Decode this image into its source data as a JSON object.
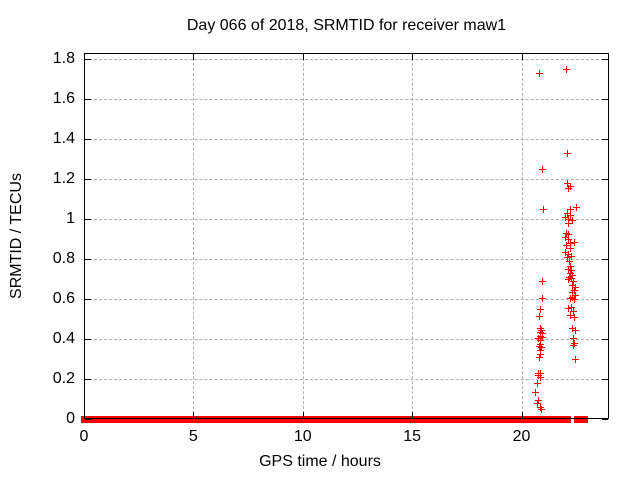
{
  "title": "Day 066 of 2018, SRMTID for receiver maw1",
  "chart_data": {
    "type": "scatter",
    "title": "Day 066 of 2018, SRMTID for receiver maw1",
    "xlabel": "GPS time / hours",
    "ylabel": "SRMTID / TECUs",
    "xlim": [
      0,
      24
    ],
    "ylim": [
      0,
      1.83
    ],
    "xticks": [
      0,
      5,
      10,
      15,
      20
    ],
    "xtick_labels": [
      "0",
      "5",
      "10",
      "15",
      "20"
    ],
    "yticks": [
      0,
      0.2,
      0.4,
      0.6,
      0.8,
      1,
      1.2,
      1.4,
      1.6,
      1.8
    ],
    "ytick_labels": [
      "0",
      "0.2",
      "0.4",
      "0.6",
      "0.8",
      "1",
      "1.2",
      "1.4",
      "1.6",
      "1.8"
    ],
    "grid": true,
    "legend": "none",
    "marker": {
      "shape": "plus",
      "size": 7
    },
    "colors": {
      "marker": "#ff0000",
      "grid": "#b0b0b0",
      "axis": "#000000",
      "background": "#ffffff",
      "text": "#000000"
    },
    "baseline_y": 0,
    "baseline_segments_hours": [
      [
        0,
        20.76
      ],
      [
        20.98,
        22.08
      ],
      [
        22.54,
        22.9
      ]
    ],
    "points": [
      [
        20.82,
        1.73
      ],
      [
        20.94,
        1.25
      ],
      [
        21.0,
        1.05
      ],
      [
        20.97,
        0.69
      ],
      [
        20.97,
        0.601
      ],
      [
        20.88,
        0.546
      ],
      [
        20.8,
        0.514
      ],
      [
        20.85,
        0.455
      ],
      [
        20.9,
        0.445
      ],
      [
        20.85,
        0.434
      ],
      [
        20.95,
        0.429
      ],
      [
        20.85,
        0.413
      ],
      [
        20.95,
        0.409
      ],
      [
        20.78,
        0.404
      ],
      [
        20.85,
        0.393
      ],
      [
        20.85,
        0.373
      ],
      [
        20.8,
        0.363
      ],
      [
        20.9,
        0.359
      ],
      [
        20.85,
        0.343
      ],
      [
        20.85,
        0.323
      ],
      [
        20.88,
        0.321
      ],
      [
        20.8,
        0.309
      ],
      [
        20.78,
        0.229
      ],
      [
        20.89,
        0.229
      ],
      [
        20.85,
        0.209
      ],
      [
        20.77,
        0.218
      ],
      [
        20.73,
        0.176
      ],
      [
        20.66,
        0.134
      ],
      [
        20.77,
        0.093
      ],
      [
        20.73,
        0.076
      ],
      [
        20.85,
        0.059
      ],
      [
        20.93,
        0.046
      ],
      [
        22.04,
        1.75
      ],
      [
        22.1,
        1.33
      ],
      [
        22.11,
        1.18
      ],
      [
        22.22,
        1.163
      ],
      [
        22.17,
        1.151
      ],
      [
        22.52,
        1.059
      ],
      [
        22.26,
        1.046
      ],
      [
        22.11,
        1.026
      ],
      [
        22.25,
        1.018
      ],
      [
        22.03,
        1.006
      ],
      [
        22.17,
        0.996
      ],
      [
        22.34,
        0.993
      ],
      [
        22.17,
        0.979
      ],
      [
        22.06,
        0.926
      ],
      [
        22.17,
        0.923
      ],
      [
        22.03,
        0.909
      ],
      [
        22.17,
        0.896
      ],
      [
        22.44,
        0.884
      ],
      [
        22.26,
        0.876
      ],
      [
        22.06,
        0.868
      ],
      [
        22.22,
        0.851
      ],
      [
        22.03,
        0.834
      ],
      [
        22.14,
        0.823
      ],
      [
        22.3,
        0.813
      ],
      [
        22.09,
        0.806
      ],
      [
        22.2,
        0.79
      ],
      [
        22.26,
        0.765
      ],
      [
        22.17,
        0.75
      ],
      [
        22.3,
        0.745
      ],
      [
        22.22,
        0.73
      ],
      [
        22.34,
        0.72
      ],
      [
        22.2,
        0.71
      ],
      [
        22.14,
        0.7
      ],
      [
        22.3,
        0.701
      ],
      [
        22.37,
        0.688
      ],
      [
        22.34,
        0.668
      ],
      [
        22.45,
        0.659
      ],
      [
        22.4,
        0.643
      ],
      [
        22.33,
        0.634
      ],
      [
        22.49,
        0.618
      ],
      [
        22.34,
        0.609
      ],
      [
        22.25,
        0.601
      ],
      [
        22.42,
        0.596
      ],
      [
        22.3,
        0.559
      ],
      [
        22.17,
        0.551
      ],
      [
        22.37,
        0.539
      ],
      [
        22.22,
        0.517
      ],
      [
        22.4,
        0.509
      ],
      [
        22.34,
        0.451
      ],
      [
        22.49,
        0.442
      ],
      [
        22.37,
        0.401
      ],
      [
        22.42,
        0.376
      ],
      [
        22.37,
        0.368
      ],
      [
        22.45,
        0.298
      ]
    ]
  }
}
